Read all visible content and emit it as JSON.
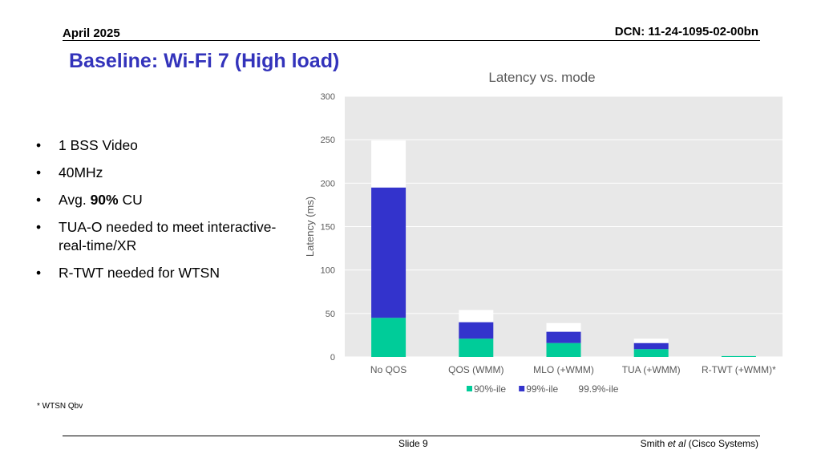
{
  "header": {
    "date": "April 2025",
    "dcn": "DCN: 11-24-1095-02-00bn"
  },
  "slide_title": "Baseline: Wi-Fi 7 (High load)",
  "bullets": [
    {
      "parts": [
        {
          "text": "1 BSS Video",
          "bold": false
        }
      ]
    },
    {
      "parts": [
        {
          "text": "40MHz",
          "bold": false
        }
      ]
    },
    {
      "parts": [
        {
          "text": "Avg. ",
          "bold": false
        },
        {
          "text": "90%",
          "bold": true
        },
        {
          "text": " CU",
          "bold": false
        }
      ]
    },
    {
      "parts": [
        {
          "text": "TUA-O needed to meet interactive-real-time/XR",
          "bold": false
        }
      ]
    },
    {
      "parts": [
        {
          "text": "R-TWT needed for WTSN",
          "bold": false
        }
      ]
    }
  ],
  "bullet_glyph": "•",
  "footnote": "* WTSN Qbv",
  "footer": {
    "slide_number": "Slide 9",
    "author_pre": "Smith ",
    "author_italic": "et al",
    "author_post": " (Cisco Systems)"
  },
  "chart_data": {
    "type": "bar",
    "stacked": true,
    "title": "Latency vs. mode",
    "ylabel": "Latency (ms)",
    "xlabel": "",
    "categories": [
      "No QOS",
      "QOS (WMM)",
      "MLO (+WMM)",
      "TUA (+WMM)",
      "R-TWT (+WMM)*"
    ],
    "ylim": [
      0,
      300
    ],
    "yticks": [
      0,
      50,
      100,
      150,
      200,
      250,
      300
    ],
    "grid": true,
    "legend_position": "bottom",
    "series": [
      {
        "name": "90%-ile",
        "color": "#00cc99",
        "values": [
          45,
          21,
          16,
          9,
          1
        ]
      },
      {
        "name": "99%-ile",
        "color": "#3333cc",
        "values": [
          150,
          19,
          13,
          7,
          0
        ]
      },
      {
        "name": "99.9%-ile",
        "color": "#ffffff",
        "values": [
          54,
          14,
          10,
          5,
          0
        ]
      }
    ],
    "plot_background": "#e8e8e8"
  }
}
